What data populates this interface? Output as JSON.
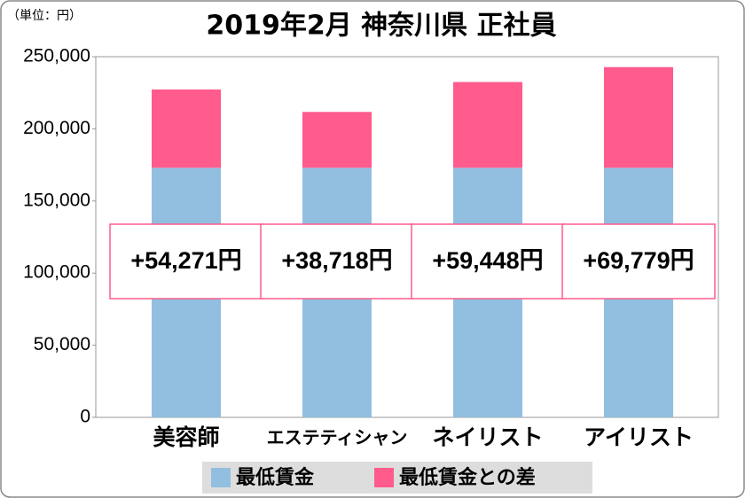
{
  "chart_data": {
    "type": "stacked-bar",
    "title": "2019年2月 神奈川県 正社員",
    "unit_label": "（単位：円）",
    "categories": [
      "美容師",
      "エステティシャン",
      "ネイリスト",
      "アイリスト"
    ],
    "series": [
      {
        "name": "最低賃金",
        "color": "#92bfe0",
        "values": [
          173000,
          173000,
          173000,
          173000
        ]
      },
      {
        "name": "最低賃金との差",
        "color": "#ff5b8c",
        "values": [
          54271,
          38718,
          59448,
          69779
        ],
        "value_labels": [
          "+54,271円",
          "+38,718円",
          "+59,448円",
          "+69,779円"
        ]
      }
    ],
    "ylim": [
      0,
      250000
    ],
    "yticks": [
      0,
      {
        "value": 50000,
        "label": "50,000"
      },
      {
        "value": 100000,
        "label": "100,000"
      },
      {
        "value": 150000,
        "label": "150,000"
      },
      {
        "value": 200000,
        "label": "200,000"
      },
      {
        "value": 250000,
        "label": "250,000"
      }
    ]
  }
}
